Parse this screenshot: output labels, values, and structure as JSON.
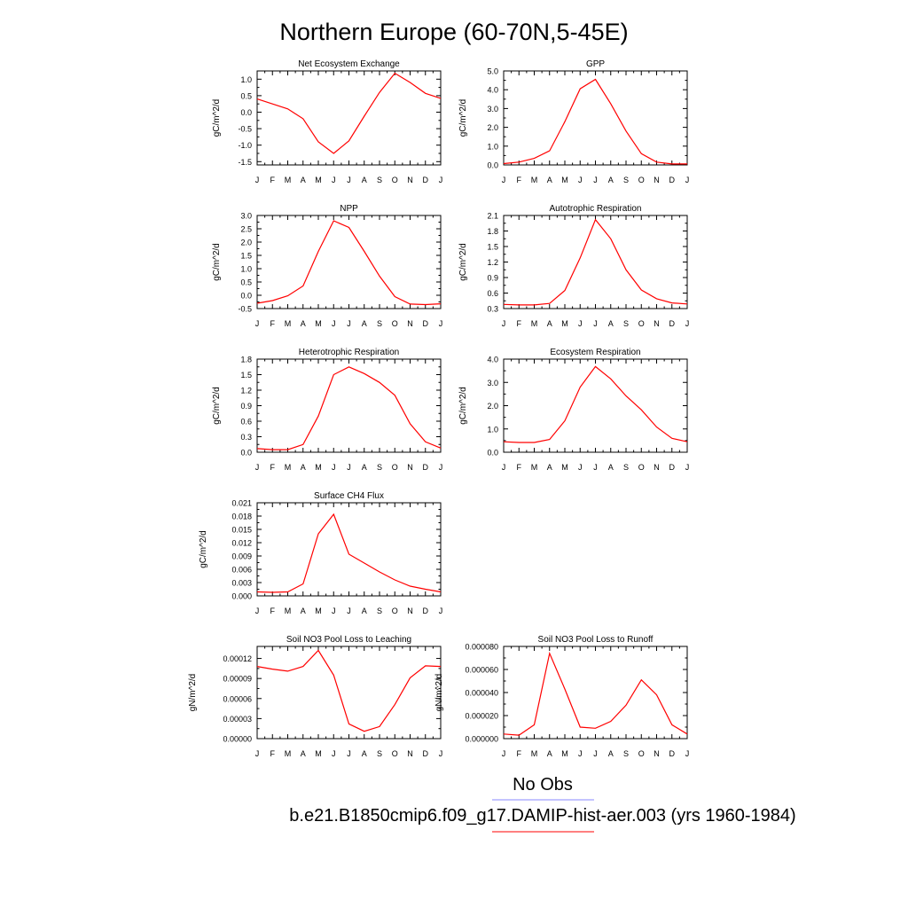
{
  "title": "Northern Europe (60-70N,5-45E)",
  "months": [
    "J",
    "F",
    "M",
    "A",
    "M",
    "J",
    "J",
    "A",
    "S",
    "O",
    "N",
    "D",
    "J"
  ],
  "legend": {
    "obs_label": "No Obs",
    "obs_color": "#8888ff",
    "model_label": "b.e21.B1850cmip6.f09_g17.DAMIP-hist-aer.003 (yrs 1960-1984)",
    "model_color": "#ff0000"
  },
  "chart_data": [
    {
      "type": "line",
      "title": "Net Ecosystem Exchange",
      "ylabel": "gC/m^2/d",
      "ylim": [
        -1.6,
        1.25
      ],
      "yticks": [
        "1.0",
        "0.5",
        "0.0",
        "-0.5",
        "-1.0",
        "-1.5"
      ],
      "ytick_values": [
        1.0,
        0.5,
        0.0,
        -0.5,
        -1.0,
        -1.5
      ],
      "series": [
        {
          "values": [
            0.4,
            0.25,
            0.1,
            -0.2,
            -0.9,
            -1.25,
            -0.87,
            -0.12,
            0.6,
            1.18,
            0.9,
            0.57,
            0.42
          ]
        }
      ]
    },
    {
      "type": "line",
      "title": "GPP",
      "ylabel": "gC/m^2/d",
      "ylim": [
        0,
        5.0
      ],
      "yticks": [
        "5.0",
        "4.0",
        "3.0",
        "2.0",
        "1.0",
        "0.0"
      ],
      "ytick_values": [
        5.0,
        4.0,
        3.0,
        2.0,
        1.0,
        0.0
      ],
      "series": [
        {
          "values": [
            0.07,
            0.15,
            0.35,
            0.75,
            2.3,
            4.05,
            4.55,
            3.25,
            1.8,
            0.6,
            0.15,
            0.05,
            0.05
          ]
        }
      ]
    },
    {
      "type": "line",
      "title": "NPP",
      "ylabel": "gC/m^2/d",
      "ylim": [
        -0.5,
        3.0
      ],
      "yticks": [
        "3.0",
        "2.5",
        "2.0",
        "1.5",
        "1.0",
        "0.5",
        "0.0",
        "-0.5"
      ],
      "ytick_values": [
        3.0,
        2.5,
        2.0,
        1.5,
        1.0,
        0.5,
        0.0,
        -0.5
      ],
      "series": [
        {
          "values": [
            -0.3,
            -0.2,
            -0.02,
            0.35,
            1.65,
            2.8,
            2.55,
            1.65,
            0.72,
            -0.05,
            -0.33,
            -0.35,
            -0.32
          ]
        }
      ]
    },
    {
      "type": "line",
      "title": "Autotrophic Respiration",
      "ylabel": "gC/m^2/d",
      "ylim": [
        0.3,
        2.1
      ],
      "yticks": [
        "2.1",
        "1.8",
        "1.5",
        "1.2",
        "0.9",
        "0.6",
        "0.3"
      ],
      "ytick_values": [
        2.1,
        1.8,
        1.5,
        1.2,
        0.9,
        0.6,
        0.3
      ],
      "series": [
        {
          "values": [
            0.38,
            0.37,
            0.37,
            0.4,
            0.65,
            1.28,
            2.02,
            1.65,
            1.05,
            0.66,
            0.49,
            0.41,
            0.39
          ]
        }
      ]
    },
    {
      "type": "line",
      "title": "Heterotrophic Respiration",
      "ylabel": "gC/m^2/d",
      "ylim": [
        0,
        1.8
      ],
      "yticks": [
        "1.8",
        "1.5",
        "1.2",
        "0.9",
        "0.6",
        "0.3",
        "0.0"
      ],
      "ytick_values": [
        1.8,
        1.5,
        1.2,
        0.9,
        0.6,
        0.3,
        0.0
      ],
      "series": [
        {
          "values": [
            0.07,
            0.05,
            0.05,
            0.15,
            0.7,
            1.5,
            1.65,
            1.52,
            1.35,
            1.1,
            0.55,
            0.2,
            0.08
          ]
        }
      ]
    },
    {
      "type": "line",
      "title": "Ecosystem Respiration",
      "ylabel": "gC/m^2/d",
      "ylim": [
        0,
        4.0
      ],
      "yticks": [
        "4.0",
        "3.0",
        "2.0",
        "1.0",
        "0.0"
      ],
      "ytick_values": [
        4.0,
        3.0,
        2.0,
        1.0,
        0.0
      ],
      "series": [
        {
          "values": [
            0.45,
            0.42,
            0.42,
            0.55,
            1.35,
            2.8,
            3.68,
            3.15,
            2.42,
            1.82,
            1.08,
            0.6,
            0.45
          ]
        }
      ]
    },
    {
      "type": "line",
      "title": "Surface CH4 Flux",
      "ylabel": "gC/m^2/d",
      "ylim": [
        0,
        0.021
      ],
      "yticks": [
        "0.021",
        "0.018",
        "0.015",
        "0.012",
        "0.009",
        "0.006",
        "0.003",
        "0.000"
      ],
      "ytick_values": [
        0.021,
        0.018,
        0.015,
        0.012,
        0.009,
        0.006,
        0.003,
        0.0
      ],
      "series": [
        {
          "values": [
            0.0009,
            0.0008,
            0.0009,
            0.0027,
            0.014,
            0.0184,
            0.0094,
            0.0074,
            0.0054,
            0.0036,
            0.0022,
            0.0015,
            0.0009
          ]
        }
      ]
    },
    {
      "type": "line",
      "title": "Soil NO3 Pool Loss to Leaching",
      "ylabel": "gN/m^2/d",
      "ylim": [
        0,
        0.000138
      ],
      "yticks": [
        "0.00012",
        "0.00009",
        "0.00006",
        "0.00003",
        "0.00000"
      ],
      "ytick_values": [
        0.00012,
        9e-05,
        6e-05,
        3e-05,
        0.0
      ],
      "series": [
        {
          "values": [
            0.000108,
            0.000104,
            0.000101,
            0.000108,
            0.000132,
            9.5e-05,
            2.2e-05,
            1.1e-05,
            1.8e-05,
            5.1e-05,
            9.1e-05,
            0.000109,
            0.000108
          ]
        }
      ]
    },
    {
      "type": "line",
      "title": "Soil NO3 Pool Loss to Runoff",
      "ylabel": "gN/m^2/d",
      "ylim": [
        0,
        8e-05
      ],
      "yticks": [
        "0.000080",
        "0.000060",
        "0.000040",
        "0.000020",
        "0.000000"
      ],
      "ytick_values": [
        8e-05,
        6e-05,
        4e-05,
        2e-05,
        0.0
      ],
      "series": [
        {
          "values": [
            4e-06,
            3e-06,
            1.2e-05,
            7.4e-05,
            4.3e-05,
            1e-05,
            9e-06,
            1.5e-05,
            2.9e-05,
            5.1e-05,
            3.8e-05,
            1.2e-05,
            4e-06
          ]
        }
      ]
    }
  ]
}
